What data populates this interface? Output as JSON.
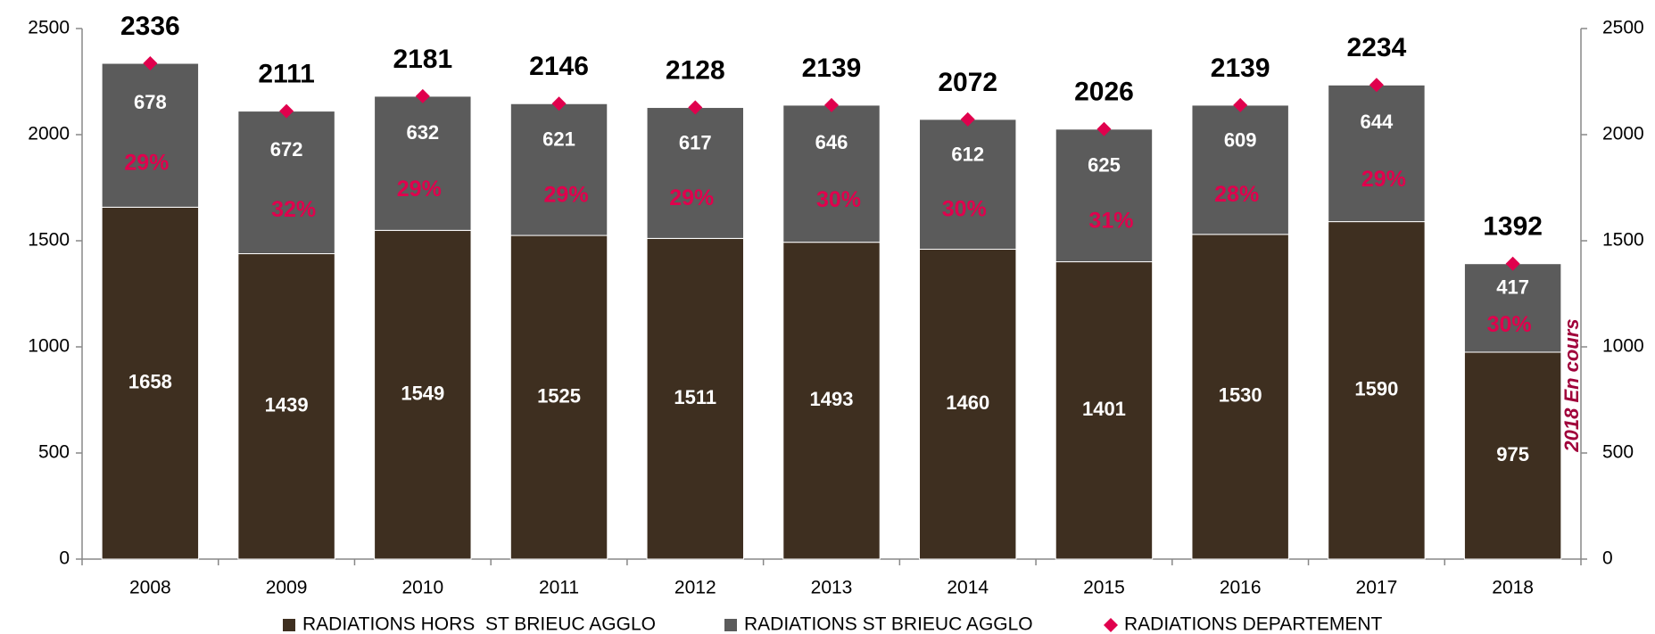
{
  "chart_data": {
    "type": "bar",
    "categories": [
      "2008",
      "2009",
      "2010",
      "2011",
      "2012",
      "2013",
      "2014",
      "2015",
      "2016",
      "2017",
      "2018"
    ],
    "series": [
      {
        "name": "RADIATIONS HORS  ST BRIEUC AGGLO",
        "color": "#3e2f20",
        "stacked": true,
        "values": [
          1658,
          1439,
          1549,
          1525,
          1511,
          1493,
          1460,
          1401,
          1530,
          1590,
          975
        ]
      },
      {
        "name": "RADIATIONS ST BRIEUC AGGLO",
        "color": "#5b5b5b",
        "stacked": true,
        "values": [
          678,
          672,
          632,
          621,
          617,
          646,
          612,
          625,
          609,
          644,
          417
        ]
      },
      {
        "name": "RADIATIONS DEPARTEMENT",
        "color": "#e0004d",
        "marker": "diamond",
        "values": [
          2336,
          2111,
          2181,
          2146,
          2128,
          2139,
          2072,
          2026,
          2139,
          2234,
          1392
        ]
      }
    ],
    "share_labels": [
      "29%",
      "32%",
      "29%",
      "29%",
      "29%",
      "30%",
      "30%",
      "31%",
      "28%",
      "29%",
      "30%"
    ],
    "annotation": "2018 En cours",
    "ylim": [
      0,
      2500
    ],
    "yticks": [
      0,
      500,
      1000,
      1500,
      2000,
      2500
    ],
    "y2lim": [
      0,
      2500
    ],
    "y2ticks": [
      0,
      500,
      1000,
      1500,
      2000,
      2500
    ],
    "legend": "bottom"
  }
}
